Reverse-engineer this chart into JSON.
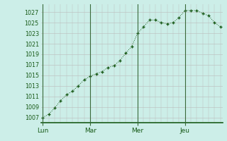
{
  "bg_color": "#cceee8",
  "grid_color": "#bbbbbb",
  "line_color": "#1a5c1a",
  "marker_color": "#1a5c1a",
  "x_tick_labels": [
    "Lun",
    "Mar",
    "Mer",
    "Jeu"
  ],
  "x_tick_positions": [
    0,
    24,
    48,
    72
  ],
  "ylim": [
    1006,
    1028.5
  ],
  "yticks": [
    1007,
    1009,
    1011,
    1013,
    1015,
    1017,
    1019,
    1021,
    1023,
    1025,
    1027
  ],
  "xlim": [
    -1,
    91
  ],
  "data_x": [
    0,
    3,
    6,
    9,
    12,
    15,
    18,
    21,
    24,
    27,
    30,
    33,
    36,
    39,
    42,
    45,
    48,
    51,
    54,
    57,
    60,
    63,
    66,
    69,
    72,
    75,
    78,
    81,
    84,
    87,
    90
  ],
  "data_y": [
    1007.0,
    1007.6,
    1008.8,
    1010.2,
    1011.3,
    1012.0,
    1013.0,
    1014.2,
    1014.8,
    1015.3,
    1015.7,
    1016.5,
    1016.8,
    1017.8,
    1019.2,
    1020.5,
    1023.0,
    1024.2,
    1025.5,
    1025.5,
    1025.0,
    1024.8,
    1025.0,
    1026.0,
    1027.3,
    1027.3,
    1027.3,
    1026.8,
    1026.3,
    1025.0,
    1024.2
  ]
}
